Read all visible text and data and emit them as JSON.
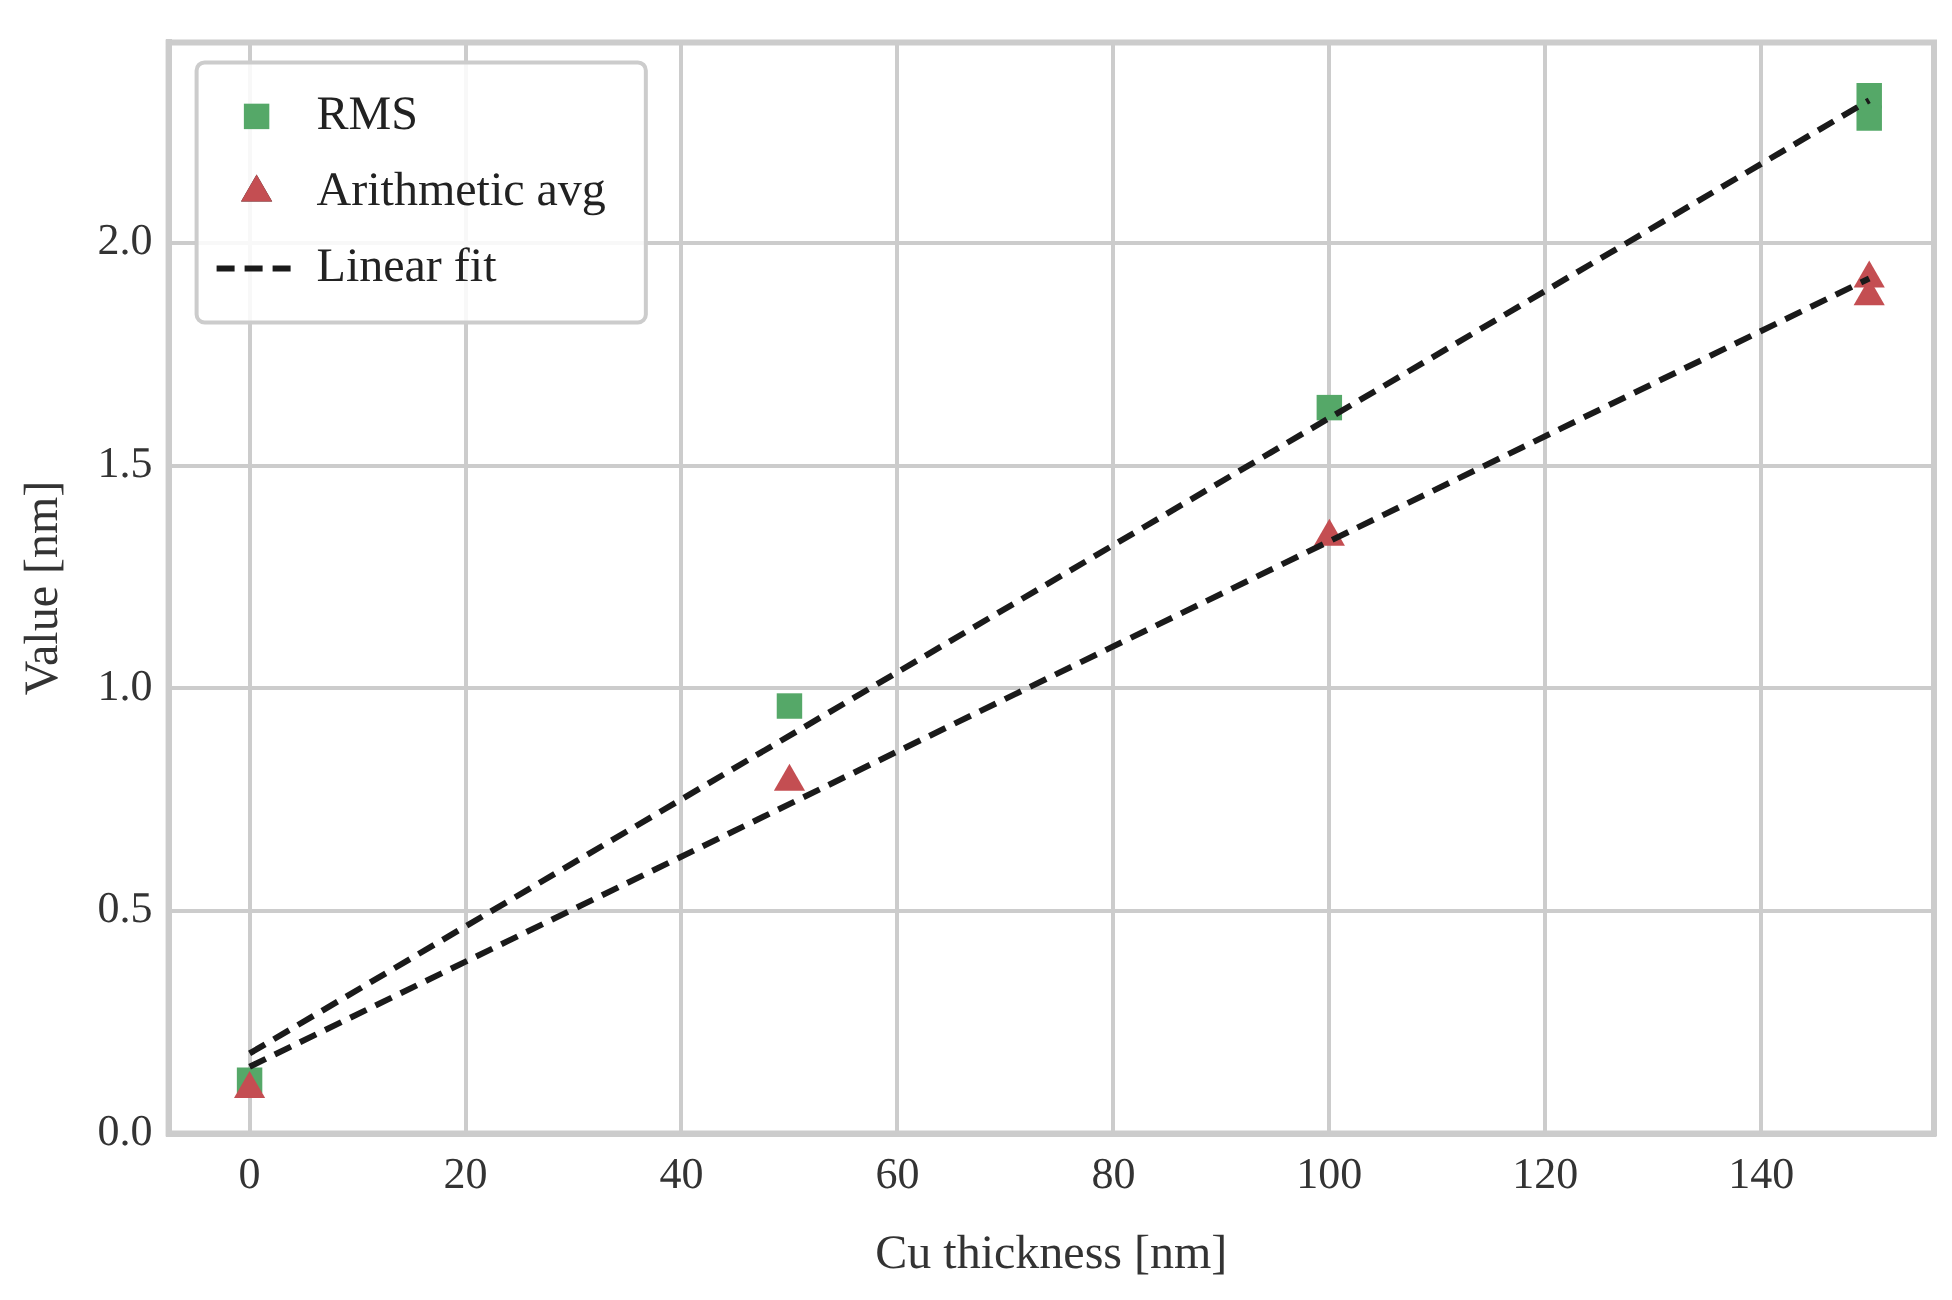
{
  "chart_data": {
    "type": "scatter",
    "xlabel": "Cu thickness [nm]",
    "ylabel": "Value [nm]",
    "xlim": [
      -7.5,
      156
    ],
    "xticks": [
      0,
      20,
      40,
      60,
      80,
      100,
      120,
      140
    ],
    "ylim": [
      0,
      2.45
    ],
    "yticks": [
      {
        "value": 0,
        "label": "0.0"
      },
      0.5,
      {
        "value": 1,
        "label": "1.0"
      },
      1.5,
      {
        "value": 2,
        "label": "2.0"
      }
    ],
    "grid": true,
    "legend": "top left",
    "series": [
      {
        "name": "RMS",
        "marker": "square",
        "color": "#55a868",
        "x": [
          0,
          50,
          100,
          150,
          150
        ],
        "values": [
          0.12,
          0.96,
          1.63,
          2.33,
          2.28
        ]
      },
      {
        "name": "Arithmetic avg",
        "marker": "triangle",
        "color": "#c44e52",
        "x": [
          0,
          50,
          100,
          150,
          150
        ],
        "values": [
          0.1,
          0.79,
          1.34,
          1.92,
          1.88
        ]
      },
      {
        "name": "Linear fit",
        "type": "line",
        "line_style": "dashed",
        "color": "#1a1a1a",
        "x": [
          0,
          150
        ],
        "values": [
          0.18,
          2.32
        ]
      },
      {
        "type": "line",
        "line_style": "dashed",
        "color": "#1a1a1a",
        "x": [
          0,
          150
        ],
        "values": [
          0.15,
          1.92
        ]
      }
    ]
  }
}
